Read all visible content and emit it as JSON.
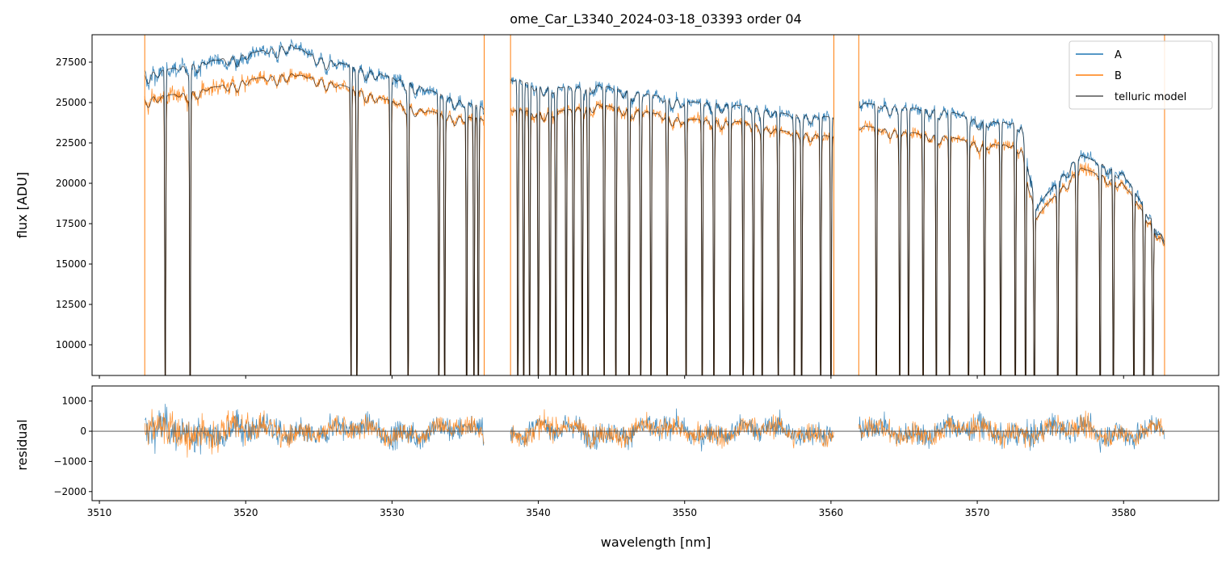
{
  "chart_data": {
    "type": "line",
    "title": "ome_Car_L3340_2024-03-18_03393  order 04",
    "xlabel": "wavelength [nm]",
    "x_ticks": [
      3510,
      3520,
      3530,
      3540,
      3550,
      3560,
      3570,
      3580
    ],
    "xlim": [
      3509.5,
      3586.5
    ],
    "colors": {
      "A": "#1f77b4",
      "B": "#ff7f0e",
      "model": "#000000"
    },
    "legend_placement": "top-right",
    "segments": [
      [
        3513.1,
        3536.3
      ],
      [
        3538.1,
        3560.2
      ],
      [
        3561.9,
        3582.8
      ]
    ],
    "top_panel": {
      "ylabel": "flux [ADU]",
      "ylim": [
        8100,
        29200
      ],
      "y_ticks": [
        10000,
        12500,
        15000,
        17500,
        20000,
        22500,
        25000,
        27500
      ],
      "series": [
        {
          "name": "A",
          "continuum_x": [
            3513.1,
            3516,
            3520,
            3523,
            3525,
            3528,
            3531,
            3534,
            3536.3,
            3538.1,
            3541,
            3544,
            3547,
            3550,
            3554,
            3557,
            3560.2,
            3561.9,
            3565,
            3568,
            3570,
            3573,
            3574,
            3577,
            3580,
            3582.8
          ],
          "continuum_y": [
            26800,
            27300,
            28000,
            28600,
            27800,
            27100,
            26300,
            25300,
            24700,
            26500,
            25900,
            26100,
            25600,
            25100,
            24800,
            24300,
            24100,
            25000,
            24700,
            24500,
            23900,
            23700,
            18500,
            21800,
            20600,
            16500
          ]
        },
        {
          "name": "B",
          "continuum_x": [
            3513.1,
            3516,
            3520,
            3523,
            3525,
            3528,
            3531,
            3534,
            3536.3,
            3538.1,
            3541,
            3544,
            3547,
            3550,
            3554,
            3557,
            3560.2,
            3561.9,
            3565,
            3568,
            3570,
            3573,
            3574,
            3577,
            3580,
            3582.8
          ],
          "continuum_y": [
            25300,
            25600,
            26400,
            26800,
            26500,
            25700,
            24800,
            24200,
            24000,
            24600,
            24400,
            24900,
            24500,
            24000,
            23800,
            23200,
            22900,
            23600,
            23200,
            22900,
            22500,
            22300,
            17900,
            21000,
            20000,
            16300
          ]
        },
        {
          "name": "telluric model"
        }
      ],
      "absorption_lines_nm": [
        3514.5,
        3516.2,
        3527.2,
        3527.6,
        3529.9,
        3531.1,
        3533.2,
        3533.6,
        3535.1,
        3535.6,
        3535.9,
        3538.6,
        3539.0,
        3539.4,
        3540.0,
        3540.8,
        3541.2,
        3541.9,
        3542.4,
        3543.0,
        3543.4,
        3544.5,
        3545.3,
        3546.2,
        3547.0,
        3547.7,
        3548.8,
        3550.1,
        3551.2,
        3552.0,
        3553.1,
        3554.0,
        3554.7,
        3555.3,
        3556.4,
        3557.5,
        3558.0,
        3559.3,
        3560.0,
        3563.1,
        3564.7,
        3565.3,
        3566.3,
        3567.2,
        3568.1,
        3569.4,
        3570.5,
        3571.6,
        3572.6,
        3573.3,
        3573.9,
        3575.5,
        3576.8,
        3578.4,
        3579.3,
        3580.7,
        3581.4,
        3582.0
      ]
    },
    "bottom_panel": {
      "ylabel": "residual",
      "ylim": [
        -2300,
        1500
      ],
      "y_ticks": [
        -2000,
        -1000,
        0,
        1000
      ],
      "zero_line": true
    }
  }
}
